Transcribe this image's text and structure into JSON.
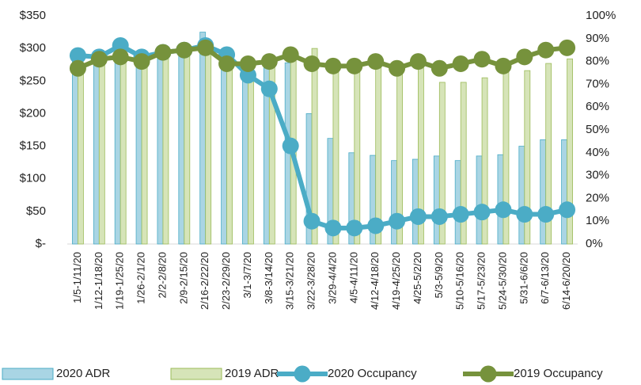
{
  "chart_data": {
    "type": "bar",
    "categories": [
      "1/5-1/11/20",
      "1/12-1/18/20",
      "1/19-1/25/20",
      "1/26-2/1/20",
      "2/2-2/8/20",
      "2/9-2/15/20",
      "2/16-2/22/20",
      "2/23-2/29/20",
      "3/1-3/7/20",
      "3/8-3/14/20",
      "3/15-3/21/20",
      "3/22-3/28/20",
      "3/29-4/4/20",
      "4/5-4/11/20",
      "4/12-4/18/20",
      "4/19-4/25/20",
      "4/25-5/2/20",
      "5/3-5/9/20",
      "5/10-5/16/20",
      "5/17-5/23/20",
      "5/24-5/30/20",
      "5/31-6/6/20",
      "6/7-6/13/20",
      "6/14-6/20/20"
    ],
    "series": [
      {
        "name": "2020 ADR",
        "type": "bar",
        "color": "#a9d5e4",
        "values": [
          285,
          290,
          300,
          290,
          295,
          300,
          325,
          290,
          255,
          270,
          278,
          200,
          162,
          140,
          136,
          128,
          130,
          135,
          128,
          135,
          137,
          150,
          160,
          160
        ]
      },
      {
        "name": "2019 ADR",
        "type": "bar",
        "color": "#d6e4b8",
        "values": [
          265,
          275,
          280,
          280,
          290,
          295,
          300,
          280,
          260,
          275,
          285,
          300,
          275,
          280,
          275,
          270,
          270,
          248,
          248,
          255,
          265,
          266,
          277,
          284
        ]
      },
      {
        "name": "2020 Occupancy",
        "type": "line",
        "axis": "y2",
        "color": "#4bacc6",
        "values": [
          82.6,
          82,
          87,
          82,
          84,
          85,
          87,
          83,
          74,
          68,
          43,
          10,
          7,
          7,
          8,
          10,
          12,
          12,
          13,
          14,
          15,
          13,
          13,
          15
        ]
      },
      {
        "name": "2019 Occupancy",
        "type": "line",
        "axis": "y2",
        "color": "#76923c",
        "values": [
          77,
          81,
          82,
          80,
          84,
          85,
          86,
          79,
          79,
          80,
          83,
          79,
          78,
          78,
          80,
          77,
          80,
          77,
          79,
          81,
          78,
          82,
          85,
          86
        ]
      }
    ],
    "ylim": [
      0,
      350
    ],
    "yticks": [
      {
        "value": 0,
        "label": "$-"
      },
      {
        "value": 50,
        "label": "$50"
      },
      {
        "value": 100,
        "label": "$100"
      },
      {
        "value": 150,
        "label": "$150"
      },
      {
        "value": 200,
        "label": "$200"
      },
      {
        "value": 250,
        "label": "$250"
      },
      {
        "value": 300,
        "label": "$300"
      },
      {
        "value": 350,
        "label": "$350"
      }
    ],
    "y2lim": [
      0,
      100
    ],
    "y2ticks": [
      {
        "value": 0,
        "label": "0%"
      },
      {
        "value": 10,
        "label": "10%"
      },
      {
        "value": 20,
        "label": "20%"
      },
      {
        "value": 30,
        "label": "30%"
      },
      {
        "value": 40,
        "label": "40%"
      },
      {
        "value": 50,
        "label": "50%"
      },
      {
        "value": 60,
        "label": "60%"
      },
      {
        "value": 70,
        "label": "70%"
      },
      {
        "value": 80,
        "label": "80%"
      },
      {
        "value": 90,
        "label": "90%"
      },
      {
        "value": 100,
        "label": "100%"
      }
    ],
    "legend": "bottom"
  }
}
